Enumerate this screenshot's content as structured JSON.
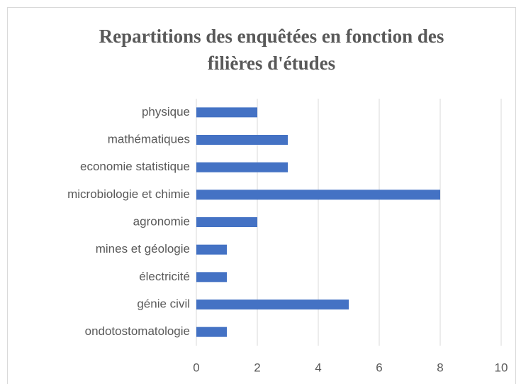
{
  "chart_data": {
    "type": "bar",
    "orientation": "horizontal",
    "title": "Repartitions des enquêtées en fonction des filières d'études",
    "categories": [
      "physique",
      "mathématiques",
      "economie statistique",
      "microbiologie et chimie",
      "agronomie",
      "mines et géologie",
      "électricité",
      "génie civil",
      "ondotostomatologie"
    ],
    "values": [
      2,
      3,
      3,
      8,
      2,
      1,
      1,
      5,
      1
    ],
    "color": "#4472c4",
    "xlim": [
      0,
      10
    ],
    "xticks": [
      0,
      2,
      4,
      6,
      8,
      10
    ],
    "grid": true
  }
}
